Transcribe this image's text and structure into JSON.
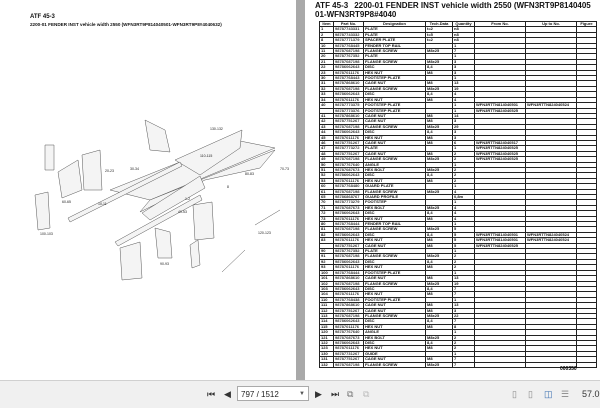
{
  "left_page": {
    "title": "ATF 45-3",
    "subtitle": "2200-01 FENDER INST vehicle width 2550 (WFN3RT9P814040501-WFN3RT9P8#4040632)"
  },
  "right_page": {
    "title_code": "ATF 45-3",
    "title_text": "2200-01 FENDER INST vehicle width 2550 (WFN3RT9P814040501-WFN3RT9P8#4040",
    "columns": [
      "Item",
      "Part No.",
      "Designation",
      "Tech.Data",
      "Quantity",
      "From No.",
      "Up to No.",
      "Figure"
    ],
    "rows": [
      [
        "1",
        "98787743331",
        "PLATE",
        "t=2",
        "n8",
        "",
        "",
        ""
      ],
      [
        "2",
        "98787743332",
        "PLATE",
        "t=5",
        "n8",
        "",
        "",
        ""
      ],
      [
        "8",
        "98787771379",
        "SPACER PLATE",
        "t=2",
        "n8",
        "",
        "",
        ""
      ],
      [
        "10",
        "98787768445",
        "FENDER TOP RAIL",
        "",
        "1",
        "",
        "",
        ""
      ],
      [
        "11",
        "98787087198",
        "FLANGE SCREW",
        "M8x25",
        "7",
        "",
        "",
        ""
      ],
      [
        "20",
        "98787767352",
        "PLATE",
        "",
        "1",
        "",
        "",
        ""
      ],
      [
        "21",
        "98787087198",
        "FLANGE SCREW",
        "M8x25",
        "3",
        "",
        "",
        ""
      ],
      [
        "22",
        "98786062643",
        "DISC",
        "8,4",
        "3",
        "",
        "",
        ""
      ],
      [
        "23",
        "98787011176",
        "HEX NUT",
        "M8",
        "3",
        "",
        "",
        ""
      ],
      [
        "30",
        "98787768443",
        "FOOTSTEP PLATE",
        "",
        "1",
        "",
        "",
        ""
      ],
      [
        "31",
        "98787868610",
        "CAGE NUT",
        "M8",
        "13",
        "",
        "",
        ""
      ],
      [
        "32",
        "98787087198",
        "FLANGE SCREW",
        "M8x25",
        "19",
        "",
        "",
        ""
      ],
      [
        "33",
        "98786062643",
        "DISC",
        "8,4",
        "4",
        "",
        "",
        ""
      ],
      [
        "34",
        "98787011176",
        "HEX NUT",
        "M8",
        "4",
        "",
        "",
        ""
      ],
      [
        "40",
        "98787773375",
        "FOOTSTEP PLATE",
        "",
        "1",
        "WFN3RTTN814040501",
        "WFN3RTTN824040524",
        ""
      ],
      [
        "",
        "98787773376",
        "FOOTSTEP PLATE",
        "",
        "1",
        "WFN3RTTN824040525",
        "",
        ""
      ],
      [
        "41",
        "98787868610",
        "CAGE NUT",
        "M8",
        "14",
        "",
        "",
        ""
      ],
      [
        "42",
        "98787751267",
        "CAGE NUT",
        "M8",
        "3",
        "",
        "",
        ""
      ],
      [
        "43",
        "98787087198",
        "FLANGE SCREW",
        "M8x25",
        "29",
        "",
        "",
        ""
      ],
      [
        "44",
        "98786062643",
        "DISC",
        "8,4",
        "3",
        "",
        "",
        ""
      ],
      [
        "45",
        "98787011176",
        "HEX NUT",
        "M8",
        "3",
        "",
        "",
        ""
      ],
      [
        "46",
        "98787751267",
        "CAGE NUT",
        "M8",
        "6",
        "WFN3RTTN824040517",
        "",
        ""
      ],
      [
        "47",
        "98787773272",
        "PLATE",
        "",
        "1",
        "WFN3RTTN824040525",
        "",
        ""
      ],
      [
        "48",
        "98787751267",
        "CAGE NUT",
        "M8",
        "2",
        "WFN3RTTN824040525",
        "",
        ""
      ],
      [
        "49",
        "98787087198",
        "FLANGE SCREW",
        "M8x25",
        "2",
        "WFN3RTTN824040525",
        "",
        ""
      ],
      [
        "50",
        "98787767640",
        "ANGLE",
        "",
        "1",
        "",
        "",
        ""
      ],
      [
        "51",
        "98787087673",
        "HEX BOLT",
        "M8x25",
        "2",
        "",
        "",
        ""
      ],
      [
        "52",
        "98786062643",
        "DISC",
        "8,4",
        "2",
        "",
        "",
        ""
      ],
      [
        "53",
        "98787011176",
        "HEX NUT",
        "M8",
        "2",
        "",
        "",
        ""
      ],
      [
        "60",
        "98787768480",
        "GUARD PLATE",
        "",
        "1",
        "",
        "",
        ""
      ],
      [
        "61",
        "98787087198",
        "FLANGE SCREW",
        "M8x25",
        "4",
        "",
        "",
        ""
      ],
      [
        "65",
        "98786868767",
        "GUARD PROFILE",
        "",
        "0,8m",
        "",
        "",
        ""
      ],
      [
        "70",
        "98787773279",
        "FOOTSTEP",
        "",
        "1",
        "",
        "",
        ""
      ],
      [
        "71",
        "98787087673",
        "HEX BOLT",
        "M8x25",
        "4",
        "",
        "",
        ""
      ],
      [
        "72",
        "98786062643",
        "DISC",
        "8,4",
        "4",
        "",
        "",
        ""
      ],
      [
        "73",
        "98787011176",
        "HEX NUT",
        "M8",
        "4",
        "",
        "",
        ""
      ],
      [
        "80",
        "98787768444",
        "FENDER TOP RAIL",
        "",
        "1",
        "",
        "",
        ""
      ],
      [
        "81",
        "98787087198",
        "FLANGE SCREW",
        "M8x25",
        "5",
        "",
        "",
        ""
      ],
      [
        "82",
        "98786062643",
        "DISC",
        "8,4",
        "5",
        "WFN3RTTN814040501",
        "WFN3RTTN824040524",
        ""
      ],
      [
        "83",
        "98787011176",
        "HEX NUT",
        "M8",
        "5",
        "WFN3RTTN814040501",
        "WFN3RTTN824040524",
        ""
      ],
      [
        "",
        "98787751267",
        "CAGE NUT",
        "M8",
        "5",
        "WFN3RTTN824040525",
        "",
        ""
      ],
      [
        "90",
        "98787767352",
        "PLATE",
        "",
        "1",
        "",
        "",
        ""
      ],
      [
        "91",
        "98787087198",
        "FLANGE SCREW",
        "M8x25",
        "2",
        "",
        "",
        ""
      ],
      [
        "92",
        "98786062643",
        "DISC",
        "8,4",
        "2",
        "",
        "",
        ""
      ],
      [
        "93",
        "98787011176",
        "HEX NUT",
        "M8",
        "2",
        "",
        "",
        ""
      ],
      [
        "100",
        "98787768444",
        "FOOTSTEP PLATE",
        "",
        "1",
        "",
        "",
        ""
      ],
      [
        "101",
        "98787868610",
        "CAGE NUT",
        "M8",
        "13",
        "",
        "",
        ""
      ],
      [
        "102",
        "98787087198",
        "FLANGE SCREW",
        "M8x25",
        "19",
        "",
        "",
        ""
      ],
      [
        "103",
        "98786062643",
        "DISC",
        "8,4",
        "7",
        "",
        "",
        ""
      ],
      [
        "104",
        "98787011176",
        "HEX NUT",
        "M8",
        "7",
        "",
        "",
        ""
      ],
      [
        "110",
        "98787768438",
        "FOOTSTEP PLATE",
        "",
        "1",
        "",
        "",
        ""
      ],
      [
        "111",
        "98787868610",
        "CAGE NUT",
        "M8",
        "13",
        "",
        "",
        ""
      ],
      [
        "112",
        "98787751267",
        "CAGE NUT",
        "M8",
        "3",
        "",
        "",
        ""
      ],
      [
        "113",
        "98787087198",
        "FLANGE SCREW",
        "M8x25",
        "22",
        "",
        "",
        ""
      ],
      [
        "114",
        "98786062643",
        "DISC",
        "8,4",
        "7",
        "",
        "",
        ""
      ],
      [
        "115",
        "98787011176",
        "HEX NUT",
        "M8",
        "8",
        "",
        "",
        ""
      ],
      [
        "120",
        "98787767640",
        "ANGLE",
        "",
        "1",
        "",
        "",
        ""
      ],
      [
        "121",
        "98787087673",
        "HEX BOLT",
        "M8x25",
        "2",
        "",
        "",
        ""
      ],
      [
        "122",
        "98786062643",
        "DISC",
        "8,4",
        "2",
        "",
        "",
        ""
      ],
      [
        "123",
        "98787011176",
        "HEX NUT",
        "M8",
        "2",
        "",
        "",
        ""
      ],
      [
        "130",
        "98787731267",
        "GUIDE",
        "",
        "1",
        "",
        "",
        ""
      ],
      [
        "131",
        "98787751267",
        "CAGE NUT",
        "M8",
        "7",
        "",
        "",
        ""
      ],
      [
        "132",
        "98787087198",
        "FLANGE SCREW",
        "M8x25",
        "7",
        "",
        "",
        ""
      ]
    ],
    "page_code": "000350"
  },
  "toolbar": {
    "first_icon": "first-page-icon",
    "prev_icon": "prev-page-icon",
    "page_value": "797 / 1512",
    "next_icon": "next-page-icon",
    "last_icon": "last-page-icon",
    "zoom": "57.0"
  },
  "diagram_labels": [
    "100-103",
    "60-65",
    "10-11",
    "30-34",
    "20-23",
    "40-53",
    "80-83",
    "110-115",
    "130-132",
    "120-123",
    "70-73",
    "90-93",
    "1-2",
    "8"
  ]
}
